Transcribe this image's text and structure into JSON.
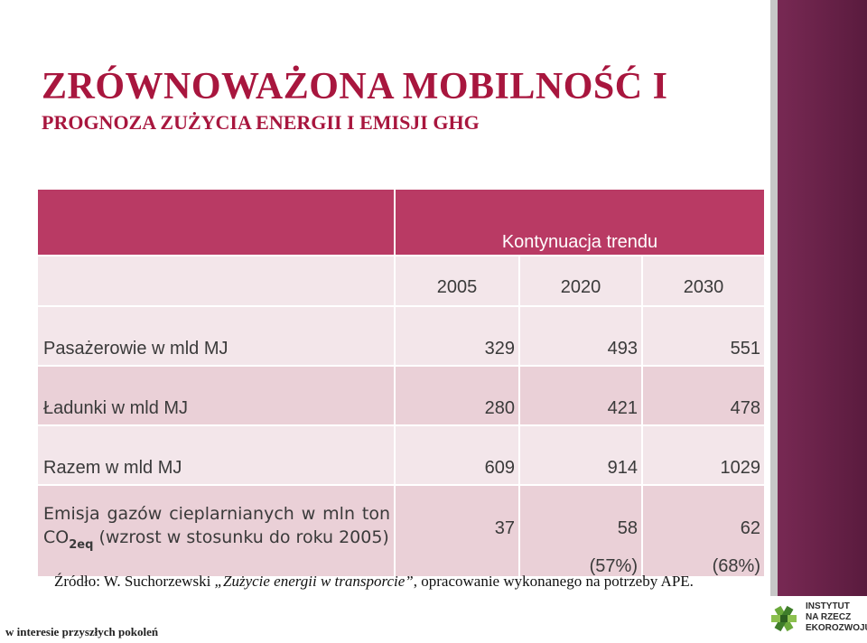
{
  "title": "ZRÓWNOWAŻONA MOBILNOŚĆ I",
  "subtitle": "PROGNOZA ZUŻYCIA ENERGII I EMISJI GHG",
  "table": {
    "group_header": "Kontynuacja trendu",
    "years": [
      "2005",
      "2020",
      "2030"
    ],
    "rows": [
      {
        "label": "Pasażerowie w mld MJ",
        "values": [
          "329",
          "493",
          "551"
        ]
      },
      {
        "label": "Ładunki w mld MJ",
        "values": [
          "280",
          "421",
          "478"
        ]
      },
      {
        "label": "Razem w mld MJ",
        "values": [
          "609",
          "914",
          "1029"
        ]
      }
    ],
    "emission": {
      "label_line1": "Emisja gazów cieplarnianych w",
      "label_line2_a": "mln ton CO",
      "label_line2_sub": "2eq",
      "label_line2_b": " (wzrost w",
      "label_line3": "stosunku do roku 2005)",
      "values": [
        "37",
        "58",
        "62"
      ],
      "percent_2020": "(57%)",
      "percent_2030": "(68%)"
    }
  },
  "source": {
    "prefix": "Źródło: W. Suchorzewski ",
    "italic": "„Zużycie energii w transporcie”",
    "suffix": ", opracowanie wykonanego na potrzeby APE."
  },
  "footer": "w interesie przyszłych pokoleń",
  "logo": {
    "line1": "INSTYTUT",
    "line2": "NA RZECZ",
    "line3": "EKOROZWOJU",
    "icon": "eco-institute-logo-icon"
  },
  "colors": {
    "title": "#a8163e",
    "header_fill": "#b93a64",
    "row_light": "#f3e6ea",
    "row_dark": "#ead0d7",
    "side_band": "#6b2249"
  }
}
